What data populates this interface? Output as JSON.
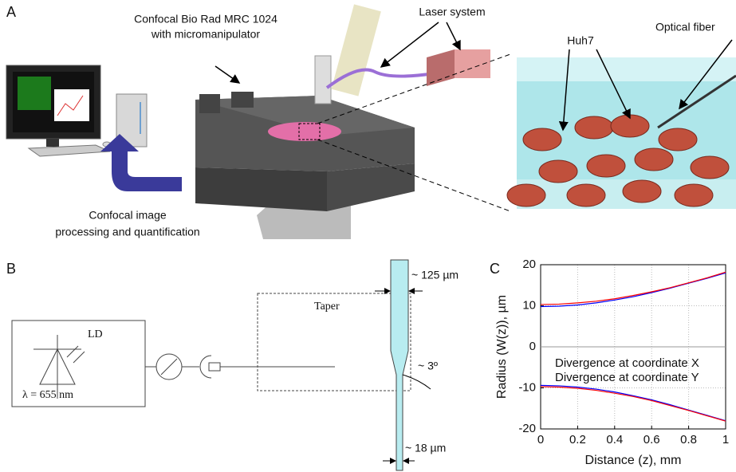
{
  "panels": {
    "a": "A",
    "b": "B",
    "c": "C"
  },
  "panel_a": {
    "microscope_label": [
      "Confocal Bio Rad MRC 1024",
      "with micromanipulator"
    ],
    "laser_label": "Laser system",
    "cells_label": "Huh7",
    "fiber_label": "Optical fiber",
    "processing_label": [
      "Confocal image",
      "processing and quantification"
    ]
  },
  "panel_b": {
    "diode_label": "LD",
    "wavelength_label": "λ = 655 nm",
    "taper_box_label": "Taper",
    "top_diameter": "~ 125 µm",
    "angle": "~ 3º",
    "tip_diameter": "~ 18 µm"
  },
  "chart_data": {
    "type": "line",
    "x_label": "Distance (z), mm",
    "y_label": "Radius (W(z)), µm",
    "x": [
      0,
      0.1,
      0.2,
      0.3,
      0.4,
      0.5,
      0.6,
      0.7,
      0.8,
      0.9,
      1
    ],
    "series": [
      {
        "name": "Divergence at coordinate X",
        "color": "#0000ff",
        "values": [
          9.8,
          9.9,
          10.2,
          10.7,
          11.4,
          12.2,
          13.2,
          14.3,
          15.5,
          16.7,
          18
        ],
        "lower": [
          -9.4,
          -9.5,
          -9.8,
          -10.3,
          -11,
          -11.9,
          -12.9,
          -14.1,
          -15.4,
          -16.7,
          -18
        ]
      },
      {
        "name": "Divergence at coordinate Y",
        "color": "#ff0000",
        "values": [
          10.3,
          10.4,
          10.7,
          11.1,
          11.7,
          12.5,
          13.4,
          14.4,
          15.6,
          16.8,
          18.2
        ],
        "lower": [
          -9.7,
          -9.8,
          -10.1,
          -10.6,
          -11.3,
          -12.1,
          -13.1,
          -14.3,
          -15.5,
          -16.8,
          -18.1
        ]
      }
    ],
    "xlim": [
      0,
      1
    ],
    "xticks": [
      0,
      0.2,
      0.4,
      0.6,
      0.8,
      1
    ],
    "ylim": [
      -20,
      20
    ],
    "yticks": [
      -20,
      -10,
      0,
      10,
      20
    ],
    "grid": true
  }
}
